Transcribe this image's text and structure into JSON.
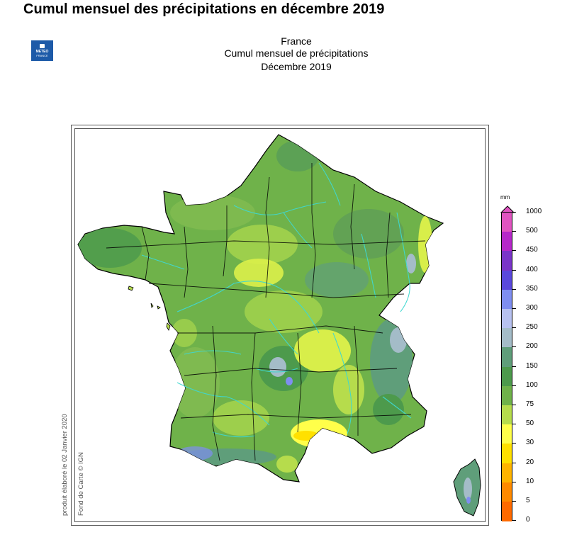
{
  "page_title": "Cumul mensuel des précipitations en décembre 2019",
  "logo": {
    "line1": "METEO",
    "line2": "FRANCE"
  },
  "map_heading": {
    "line1": "France",
    "line2": "Cumul mensuel de précipitations",
    "line3": "Décembre 2019"
  },
  "credits": {
    "produced": "produit élaboré le 02 Janvier 2020",
    "basemap": "Fond de Carte © IGN"
  },
  "legend": {
    "unit": "mm",
    "classes": [
      {
        "label": "1000",
        "color": "#e054c0"
      },
      {
        "label": "500",
        "color": "#b628c9"
      },
      {
        "label": "450",
        "color": "#7a35c8"
      },
      {
        "label": "400",
        "color": "#5a48dc"
      },
      {
        "label": "350",
        "color": "#7f8ef0"
      },
      {
        "label": "300",
        "color": "#b7c1f0"
      },
      {
        "label": "250",
        "color": "#a4bcc8"
      },
      {
        "label": "200",
        "color": "#5f9e7a"
      },
      {
        "label": "150",
        "color": "#4d9a4c"
      },
      {
        "label": "100",
        "color": "#6fb24a"
      },
      {
        "label": "75",
        "color": "#b6dc4c"
      },
      {
        "label": "50",
        "color": "#ffff4a"
      },
      {
        "label": "30",
        "color": "#ffe000"
      },
      {
        "label": "20",
        "color": "#ffb400"
      },
      {
        "label": "10",
        "color": "#ff8a00"
      },
      {
        "label": "5",
        "color": "#ff6a00"
      },
      {
        "label": "0",
        "color": ""
      }
    ]
  },
  "colors": {
    "base_green": "#6fb24a",
    "dark_green": "#4d9a4c",
    "light_green": "#b6dc4c",
    "yellow": "#ffff4a",
    "blue_gray": "#a4bcc8",
    "lavender": "#7f8ef0",
    "river": "#3fd8d0",
    "border": "#000000"
  }
}
